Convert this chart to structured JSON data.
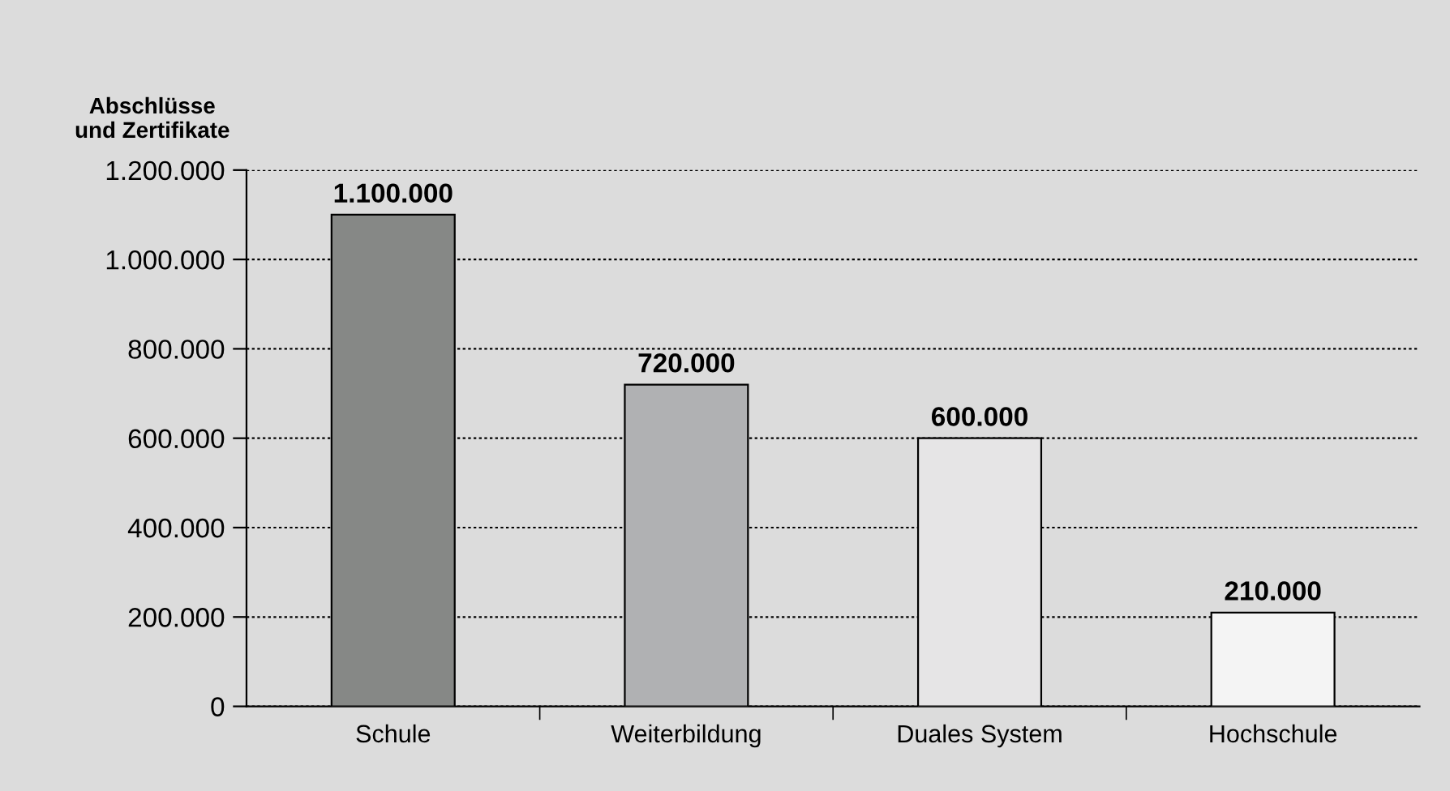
{
  "chart_data": {
    "type": "bar",
    "ylabel": "Abschlüsse\nund Zertifikate",
    "categories": [
      "Schule",
      "Weiterbildung",
      "Duales System",
      "Hochschule"
    ],
    "values": [
      1100000,
      720000,
      600000,
      210000
    ],
    "colors": [
      "#868886",
      "#b0b1b3",
      "#e6e5e6",
      "#f4f4f4"
    ],
    "value_labels": [
      "1.100.000",
      "720.000",
      "600.000",
      "210.000"
    ],
    "ylim": [
      0,
      1200000
    ],
    "yticks": [
      {
        "value": 0,
        "label": "0"
      },
      {
        "value": 200000,
        "label": "200.000"
      },
      {
        "value": 400000,
        "label": "400.000"
      },
      {
        "value": 600000,
        "label": "600.000"
      },
      {
        "value": 800000,
        "label": "800.000"
      },
      {
        "value": 1000000,
        "label": "1.000.000"
      },
      {
        "value": 1200000,
        "label": "1.200.000"
      }
    ],
    "grid": "y",
    "legend": false
  }
}
